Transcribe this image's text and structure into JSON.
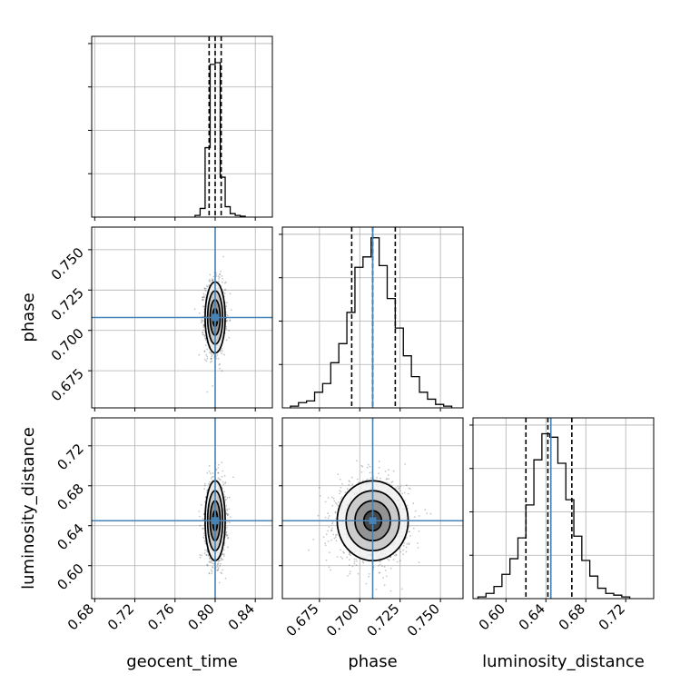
{
  "chart_data": {
    "type": "corner",
    "parameters": [
      "geocent_time",
      "phase",
      "luminosity_distance"
    ],
    "truths": {
      "geocent_time": 0.8,
      "phase": 0.708,
      "luminosity_distance": 0.645
    },
    "ranges": {
      "geocent_time": [
        0.677,
        0.857
      ],
      "phase": [
        0.652,
        0.764
      ],
      "luminosity_distance": [
        0.567,
        0.748
      ]
    },
    "ticks": {
      "geocent_time": {
        "values": [
          0.68,
          0.72,
          0.76,
          0.8,
          0.84
        ],
        "labels": [
          "0.68",
          "0.72",
          "0.76",
          "0.80",
          "0.84"
        ]
      },
      "phase": {
        "values": [
          0.675,
          0.7,
          0.725,
          0.75
        ],
        "labels": [
          "0.675",
          "0.700",
          "0.725",
          "0.750"
        ]
      },
      "luminosity_distance": {
        "values": [
          0.6,
          0.64,
          0.68,
          0.72
        ],
        "labels": [
          "0.60",
          "0.64",
          "0.68",
          "0.72"
        ]
      }
    },
    "quantiles": {
      "geocent_time": [
        0.794,
        0.8,
        0.806
      ],
      "phase": [
        0.695,
        0.708,
        0.722
      ],
      "luminosity_distance": [
        0.62,
        0.642,
        0.666
      ]
    },
    "histograms": {
      "geocent_time": {
        "edges": [
          0.78,
          0.785,
          0.79,
          0.795,
          0.8,
          0.805,
          0.81,
          0.815,
          0.82,
          0.825,
          0.83
        ],
        "counts": [
          0.01,
          0.05,
          0.4,
          0.88,
          0.89,
          0.23,
          0.06,
          0.02,
          0.01,
          0.005
        ]
      },
      "phase": {
        "edges": [
          0.657,
          0.662,
          0.667,
          0.672,
          0.677,
          0.682,
          0.687,
          0.692,
          0.697,
          0.702,
          0.707,
          0.712,
          0.717,
          0.722,
          0.727,
          0.732,
          0.737,
          0.742,
          0.747,
          0.752,
          0.757
        ],
        "counts": [
          0.01,
          0.03,
          0.04,
          0.09,
          0.14,
          0.26,
          0.37,
          0.55,
          0.81,
          0.87,
          0.98,
          0.82,
          0.63,
          0.46,
          0.3,
          0.18,
          0.09,
          0.05,
          0.02,
          0.01
        ]
      },
      "luminosity_distance": {
        "edges": [
          0.572,
          0.58,
          0.588,
          0.596,
          0.604,
          0.612,
          0.62,
          0.628,
          0.636,
          0.644,
          0.652,
          0.66,
          0.668,
          0.676,
          0.684,
          0.692,
          0.7,
          0.708,
          0.716,
          0.724
        ],
        "counts": [
          0.01,
          0.03,
          0.07,
          0.14,
          0.23,
          0.35,
          0.54,
          0.8,
          0.95,
          0.93,
          0.78,
          0.57,
          0.36,
          0.22,
          0.13,
          0.06,
          0.03,
          0.02,
          0.01
        ]
      }
    },
    "contour_levels_sigma": [
      0.5,
      1.0,
      1.5,
      2.0
    ],
    "spread": {
      "geocent_time": 0.005,
      "phase": 0.011,
      "luminosity_distance": 0.02
    },
    "grid": true
  }
}
